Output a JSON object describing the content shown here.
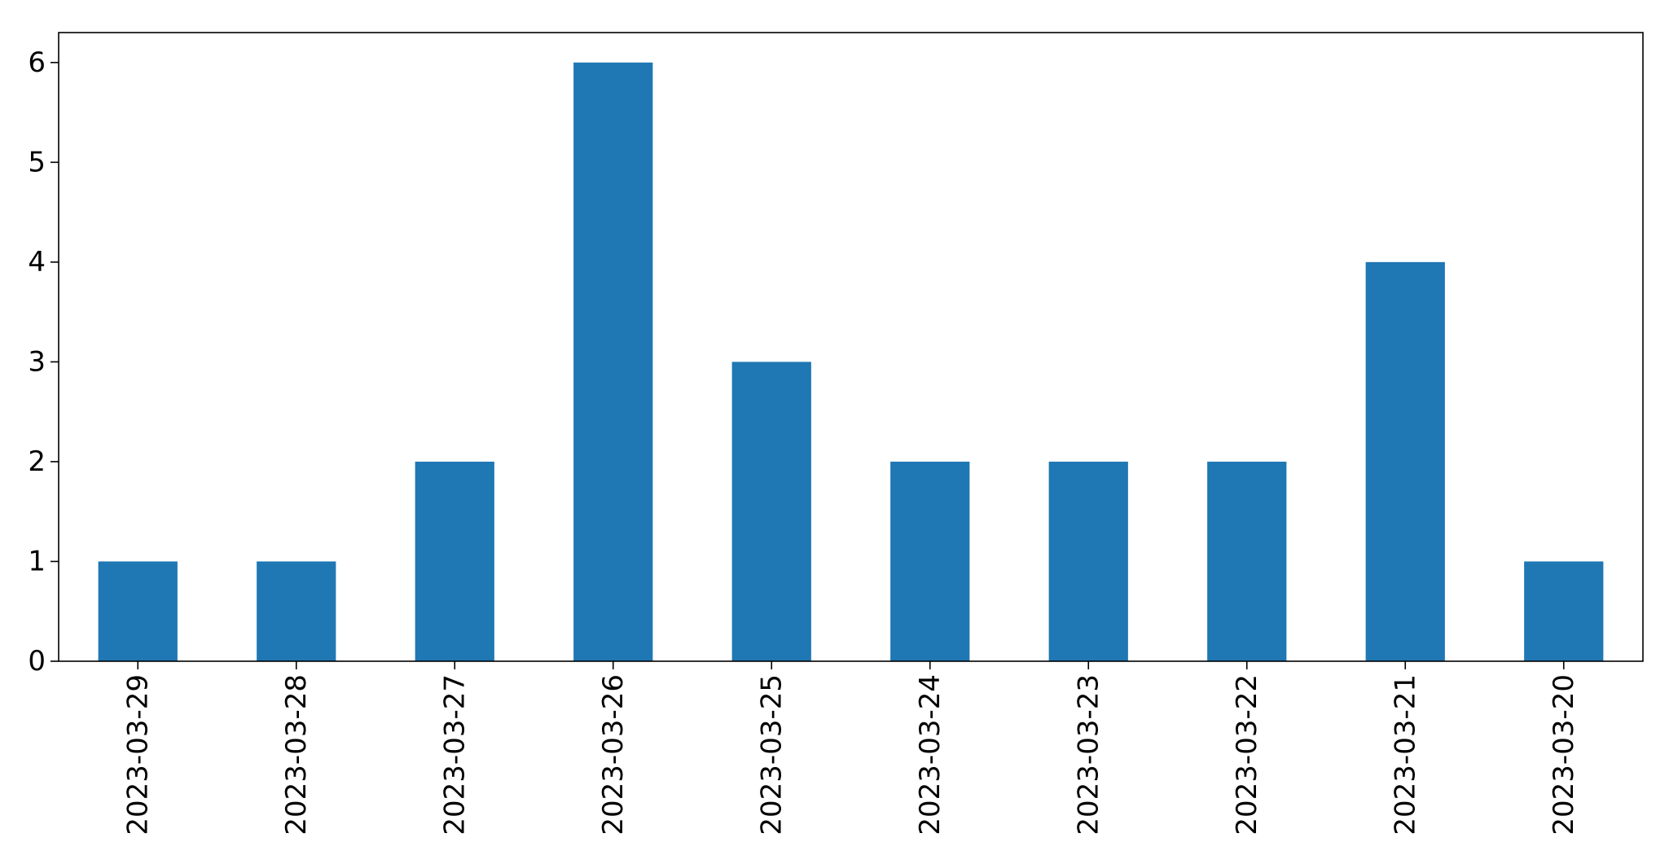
{
  "chart_data": {
    "type": "bar",
    "title": "",
    "xlabel": "",
    "ylabel": "",
    "categories": [
      "2023-03-29",
      "2023-03-28",
      "2023-03-27",
      "2023-03-26",
      "2023-03-25",
      "2023-03-24",
      "2023-03-23",
      "2023-03-22",
      "2023-03-21",
      "2023-03-20"
    ],
    "values": [
      1,
      1,
      2,
      6,
      3,
      2,
      2,
      2,
      4,
      1
    ],
    "ylim": [
      0,
      6.3
    ],
    "yticks": [
      "0",
      "1",
      "2",
      "3",
      "4",
      "5",
      "6"
    ],
    "grid": false,
    "legend": "none",
    "colors": {
      "bar": "#1f77b4",
      "axis": "#000000",
      "background": "#ffffff"
    }
  }
}
